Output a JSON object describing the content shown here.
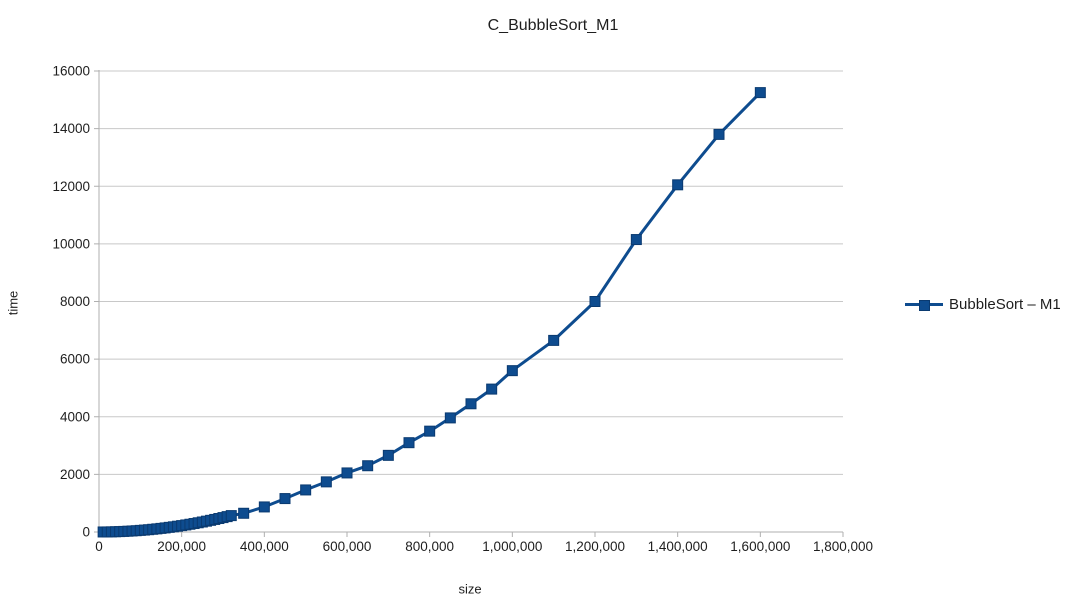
{
  "chart": {
    "title": "C_BubbleSort_M1",
    "x_axis_title": "size",
    "y_axis_title": "time",
    "legend": {
      "label": "BubbleSort – M1"
    },
    "colors": {
      "series": "#0E4C8F",
      "series_border": "#0A3A70",
      "gridline": "#C8C8C8",
      "axis": "#AFAFAF",
      "text": "#1E1E1E",
      "background": "#FFFFFF"
    }
  },
  "chart_data": {
    "type": "line",
    "title": "C_BubbleSort_M1",
    "xlabel": "size",
    "ylabel": "time",
    "xlim": [
      0,
      1800000
    ],
    "ylim": [
      0,
      16000
    ],
    "grid": "horizontal",
    "legend_position": "right",
    "x_ticks": [
      0,
      200000,
      400000,
      600000,
      800000,
      1000000,
      1200000,
      1400000,
      1600000,
      1800000
    ],
    "x_tick_labels": [
      "0",
      "200,000",
      "400,000",
      "600,000",
      "800,000",
      "1,000,000",
      "1,200,000",
      "1,400,000",
      "1,600,000",
      "1,800,000"
    ],
    "y_ticks": [
      0,
      2000,
      4000,
      6000,
      8000,
      10000,
      12000,
      14000,
      16000
    ],
    "y_tick_labels": [
      "0",
      "2000",
      "4000",
      "6000",
      "8000",
      "10000",
      "12000",
      "14000",
      "16000"
    ],
    "series": [
      {
        "name": "BubbleSort – M1",
        "marker": "square",
        "color": "#0E4C8F",
        "points": [
          [
            10000,
            1
          ],
          [
            20000,
            2
          ],
          [
            30000,
            5
          ],
          [
            40000,
            9
          ],
          [
            50000,
            14
          ],
          [
            60000,
            20
          ],
          [
            70000,
            27
          ],
          [
            80000,
            36
          ],
          [
            90000,
            45
          ],
          [
            100000,
            56
          ],
          [
            110000,
            67
          ],
          [
            120000,
            80
          ],
          [
            130000,
            94
          ],
          [
            140000,
            109
          ],
          [
            150000,
            125
          ],
          [
            160000,
            142
          ],
          [
            170000,
            161
          ],
          [
            180000,
            180
          ],
          [
            190000,
            201
          ],
          [
            200000,
            222
          ],
          [
            210000,
            245
          ],
          [
            220000,
            269
          ],
          [
            230000,
            294
          ],
          [
            240000,
            320
          ],
          [
            250000,
            347
          ],
          [
            260000,
            376
          ],
          [
            270000,
            405
          ],
          [
            280000,
            436
          ],
          [
            290000,
            468
          ],
          [
            300000,
            500
          ],
          [
            310000,
            534
          ],
          [
            320000,
            569
          ],
          [
            350000,
            650
          ],
          [
            400000,
            870
          ],
          [
            450000,
            1160
          ],
          [
            500000,
            1460
          ],
          [
            550000,
            1740
          ],
          [
            600000,
            2050
          ],
          [
            650000,
            2300
          ],
          [
            700000,
            2660
          ],
          [
            750000,
            3100
          ],
          [
            800000,
            3500
          ],
          [
            850000,
            3960
          ],
          [
            900000,
            4450
          ],
          [
            950000,
            4960
          ],
          [
            1000000,
            5600
          ],
          [
            1100000,
            6650
          ],
          [
            1200000,
            8000
          ],
          [
            1300000,
            10150
          ],
          [
            1400000,
            12050
          ],
          [
            1500000,
            13800
          ],
          [
            1600000,
            15250
          ]
        ]
      }
    ]
  }
}
